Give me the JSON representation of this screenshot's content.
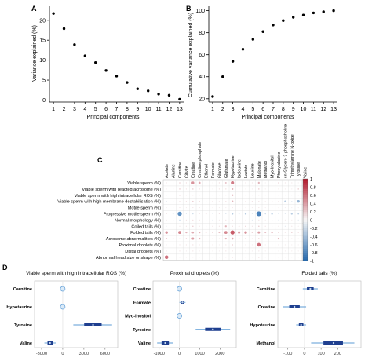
{
  "panels": {
    "A": "A",
    "B": "B",
    "C": "C",
    "D": "D"
  },
  "chart_data": [
    {
      "panel": "A",
      "type": "scatter",
      "xlabel": "Principal components",
      "ylabel": "Variance explained (%)",
      "x": [
        1,
        2,
        3,
        4,
        5,
        6,
        7,
        8,
        9,
        10,
        11,
        12,
        13
      ],
      "y": [
        21.7,
        17.9,
        13.9,
        11.1,
        9.4,
        7.4,
        6.0,
        4.4,
        2.8,
        2.3,
        1.5,
        1.2,
        0.2
      ],
      "xticks": [
        "1",
        "2",
        "3",
        "4",
        "5",
        "6",
        "7",
        "8",
        "9",
        "10",
        "11",
        "12",
        "13"
      ],
      "yticks": [
        0,
        5,
        10,
        15,
        20
      ],
      "ylim": [
        -0.5,
        23.5
      ]
    },
    {
      "panel": "B",
      "type": "scatter",
      "xlabel": "Principal components",
      "ylabel": "Cumulative variance explained (%)",
      "x": [
        1,
        2,
        3,
        4,
        5,
        6,
        7,
        8,
        9,
        10,
        11,
        12,
        13
      ],
      "y": [
        22,
        40,
        54,
        65,
        74,
        81,
        87,
        91,
        94,
        96,
        98,
        99,
        100
      ],
      "xticks": [
        "1",
        "2",
        "3",
        "4",
        "5",
        "6",
        "7",
        "8",
        "9",
        "10",
        "11",
        "12",
        "13"
      ],
      "yticks": [
        20,
        40,
        60,
        80,
        100
      ],
      "ylim": [
        17,
        104
      ]
    },
    {
      "panel": "C",
      "type": "heatmap",
      "columns": [
        "Acetate",
        "Alanine",
        "Carnitine",
        "Citrate",
        "Creatine",
        "Creatine phosphate",
        "Ethanol",
        "Formate",
        "Glucose",
        "Glutamate",
        "Hypotaurine",
        "Isoleucine",
        "Lactate",
        "Leucine",
        "Malonate",
        "Methanol",
        "Myo-Inositol",
        "Phenylalanine",
        "sn-Glycero-3-phosphocholine",
        "Trimethylamine N-oxide",
        "Tyrosine",
        "Valine"
      ],
      "rows": [
        "Viable sperm (%)",
        "Viable sperm with reacted acrosome (%)",
        "Viable sperm with high intracellular ROS (%)",
        "Viable sperm with high membrane destabilisation (%)",
        "Motile sperm (%)",
        "Progressive motile sperm (%)",
        "Normal morphology (%)",
        "Coiled tails (%)",
        "Folded tails (%)",
        "Acrosome abnormalities (%)",
        "Proximal droplets (%)",
        "Distal droplets (%)",
        "Abnormal head size or shape (%)"
      ],
      "values": [
        [
          0.1,
          0.05,
          0.2,
          0.15,
          0.45,
          0.35,
          0.1,
          0.05,
          0.15,
          0.25,
          0.55,
          0.1,
          0.15,
          0.1,
          0.3,
          0.05,
          0.1,
          0.2,
          0.1,
          0.1,
          0.05,
          0.15
        ],
        [
          0.05,
          0.1,
          0.2,
          0.1,
          0.2,
          0.15,
          0.05,
          0.05,
          0.1,
          0.15,
          0.3,
          0.1,
          0.05,
          0.05,
          0.2,
          0.05,
          0.05,
          0.1,
          0.05,
          0.05,
          0.2,
          0.3
        ],
        [
          0.05,
          0.05,
          0.2,
          0.1,
          0.15,
          0.1,
          0.05,
          0.05,
          0.05,
          0.1,
          0.3,
          0.15,
          0.1,
          0.05,
          0.15,
          0.05,
          0.05,
          0.1,
          0.05,
          0.05,
          0.1,
          -0.4
        ],
        [
          -0.1,
          -0.05,
          0.1,
          0.1,
          0.2,
          0.15,
          -0.05,
          0.1,
          0.05,
          0.1,
          0.3,
          0.1,
          0.1,
          0.1,
          0.1,
          0.05,
          0.15,
          0.1,
          -0.3,
          -0.1,
          -0.45,
          -0.2
        ],
        [
          0.05,
          0.05,
          0.1,
          0.05,
          0.1,
          0.1,
          0.05,
          0.05,
          0.05,
          0.05,
          0.1,
          0.05,
          0.05,
          0.05,
          0.1,
          0.05,
          0.05,
          0.05,
          0.05,
          0.05,
          0.05,
          0.05
        ],
        [
          0.1,
          -0.2,
          -0.7,
          -0.1,
          -0.2,
          0.1,
          0.2,
          -0.1,
          0.1,
          -0.15,
          -0.3,
          -0.2,
          -0.3,
          -0.1,
          -0.8,
          -0.2,
          -0.3,
          -0.15,
          -0.1,
          -0.3,
          -0.25,
          -0.1
        ],
        [
          0.05,
          -0.1,
          -0.2,
          0.1,
          0.15,
          0.1,
          0.05,
          -0.1,
          0.05,
          0.1,
          0.1,
          -0.15,
          0.05,
          -0.1,
          0.1,
          0.05,
          -0.1,
          -0.1,
          0.05,
          0.05,
          -0.1,
          0.05
        ],
        [
          -0.05,
          0.05,
          0.1,
          0.1,
          0.2,
          0.1,
          -0.1,
          0.15,
          0.1,
          0.3,
          0.15,
          0.2,
          0.2,
          0.1,
          0.2,
          0.1,
          0.1,
          0.1,
          -0.1,
          0.1,
          0.05,
          0.15
        ],
        [
          0.45,
          0.1,
          0.5,
          0.3,
          0.35,
          0.3,
          0.2,
          0.2,
          0.25,
          0.5,
          0.7,
          0.4,
          0.45,
          0.2,
          0.4,
          0.25,
          0.3,
          0.2,
          0.1,
          0.2,
          0.15,
          0.25
        ],
        [
          0.25,
          0.2,
          0.1,
          0.2,
          0.4,
          0.3,
          0.1,
          0.1,
          0.1,
          0.3,
          0.35,
          0.2,
          0.2,
          0.1,
          0.2,
          0.05,
          0.1,
          0.3,
          0.1,
          0.1,
          0.05,
          0.1
        ],
        [
          0.05,
          0.1,
          0.1,
          0.1,
          0.15,
          0.1,
          0.05,
          0.1,
          0.05,
          0.1,
          0.2,
          0.1,
          0.1,
          0.05,
          0.6,
          0.05,
          0.1,
          0.1,
          0.05,
          0.05,
          0.05,
          0.05
        ],
        [
          0.05,
          0.05,
          0.1,
          0.05,
          0.1,
          0.05,
          0.05,
          0.05,
          0.05,
          0.1,
          0.1,
          0.05,
          0.05,
          0.05,
          0.1,
          0.05,
          0.05,
          0.05,
          0.05,
          0.05,
          0.05,
          0.05
        ],
        [
          0.6,
          0.05,
          0.1,
          0.1,
          0.1,
          0.05,
          0.05,
          0.05,
          0.05,
          0.1,
          0.2,
          0.05,
          0.1,
          0.05,
          0.2,
          0.05,
          0.05,
          0.1,
          0.05,
          0.05,
          0.05,
          0.05
        ]
      ],
      "colorbar_ticks": [
        "1",
        "0.8",
        "0.6",
        "0.4",
        "0.2",
        "0",
        "-0.2",
        "-0.4",
        "-0.6",
        "-0.8",
        "-1"
      ],
      "colors": {
        "positive": "#b2182b",
        "neutral": "#f7f7f7",
        "negative": "#2166ac"
      }
    },
    {
      "panel": "D1",
      "type": "forest",
      "title": "Viable sperm with high intracellular ROS (%)",
      "categories": [
        "Carnitine",
        "Hypotaurine",
        "Tyrosine",
        "Valine"
      ],
      "estimates": [
        0,
        0,
        4300,
        -1800
      ],
      "ci": [
        [
          -150,
          150
        ],
        [
          -200,
          200
        ],
        [
          1500,
          7000
        ],
        [
          -2600,
          -1000
        ]
      ],
      "xticks": [
        "-3000",
        "0",
        "3000",
        "6000"
      ],
      "xlim": [
        -4000,
        7800
      ]
    },
    {
      "panel": "D2",
      "type": "forest",
      "title": "Proximal droplets (%)",
      "categories": [
        "Creatine",
        "Formate",
        "Myo-Inositol",
        "Tyrosine",
        "Valine"
      ],
      "estimates": [
        0,
        150,
        0,
        1650,
        -700
      ],
      "ci": [
        [
          -80,
          80
        ],
        [
          0,
          300
        ],
        [
          -100,
          100
        ],
        [
          800,
          2500
        ],
        [
          -1100,
          -300
        ]
      ],
      "xticks": [
        "-1000",
        "0",
        "1000",
        "2000"
      ],
      "xlim": [
        -1300,
        2800
      ]
    },
    {
      "panel": "D3",
      "type": "forest",
      "title": "Folded tails (%)",
      "categories": [
        "Carnitine",
        "Creatine",
        "Hypotaurine",
        "Methanol"
      ],
      "estimates": [
        35,
        -60,
        -20,
        175
      ],
      "ci": [
        [
          -10,
          80
        ],
        [
          -130,
          10
        ],
        [
          -50,
          10
        ],
        [
          40,
          300
        ]
      ],
      "xticks": [
        "-100",
        "0",
        "100",
        "200"
      ],
      "xlim": [
        -160,
        340
      ]
    }
  ]
}
